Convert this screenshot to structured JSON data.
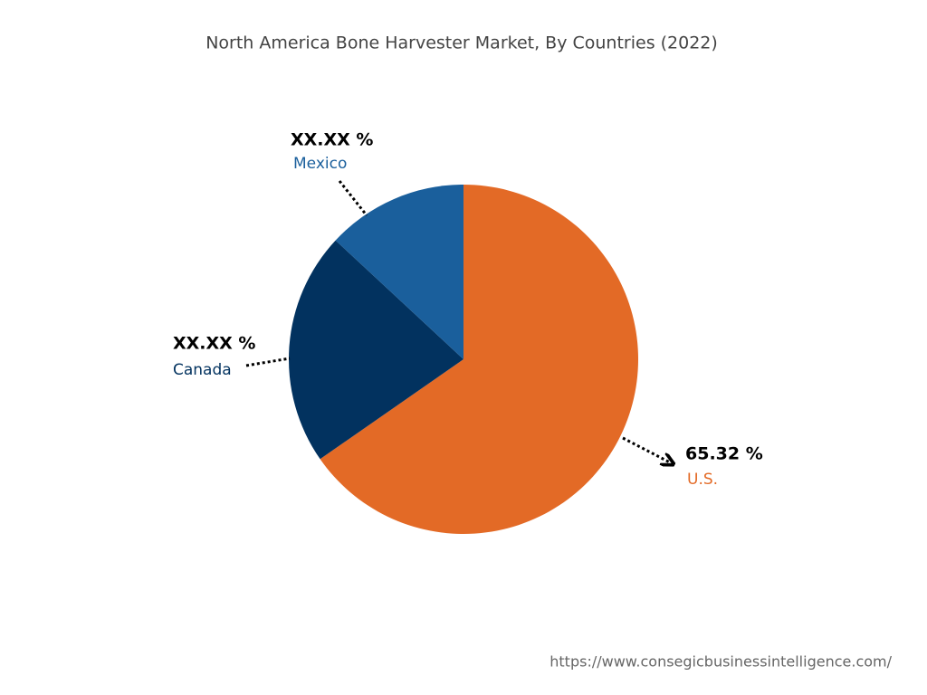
{
  "chart_data": {
    "type": "pie",
    "title": "North America Bone Harvester Market, By Countries (2022)",
    "categories": [
      "U.S.",
      "Canada",
      "Mexico"
    ],
    "values": [
      65.32,
      21.6,
      13.08
    ],
    "value_labels": [
      "65.32 %",
      "XX.XX %",
      "XX.XX %"
    ],
    "colors": [
      "#e36a26",
      "#02325f",
      "#1a5f9c"
    ]
  },
  "source": "https://www.consegicbusinessintelligence.com/"
}
